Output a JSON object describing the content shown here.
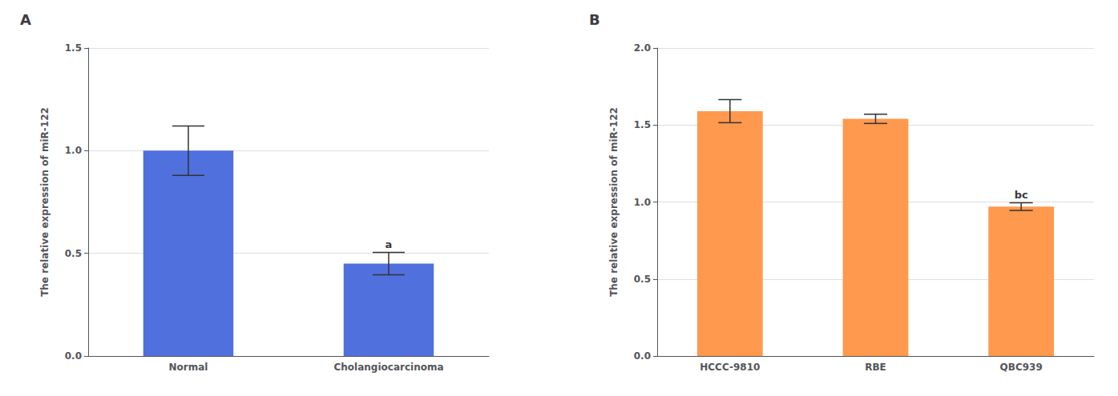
{
  "chart_data": [
    {
      "type": "bar",
      "title": "A",
      "categories": [
        "Normal",
        "Cholangiocarcinoma"
      ],
      "values": [
        1.0,
        0.45
      ],
      "errors": [
        0.12,
        0.055
      ],
      "ylabel": "The relative expression of miR-122",
      "ylim": [
        0,
        1.5
      ],
      "yticks": [
        {
          "value": 0.0,
          "label": "0.0"
        },
        0.5,
        {
          "value": 1.0,
          "label": "1.0"
        },
        1.5
      ],
      "annotations": [
        {
          "text": "a",
          "category": "Cholangiocarcinoma",
          "y": 0.505
        }
      ]
    },
    {
      "type": "bar",
      "title": "B",
      "categories": [
        "HCCC-9810",
        "RBE",
        "QBC939"
      ],
      "values": [
        1.59,
        1.54,
        0.97
      ],
      "errors": [
        0.075,
        0.03,
        0.025
      ],
      "ylabel": "The relative expression of miR-122",
      "ylim": [
        0,
        2.0
      ],
      "yticks": [
        {
          "value": 0.0,
          "label": "0.0"
        },
        0.5,
        {
          "value": 1.0,
          "label": "1.0"
        },
        1.5,
        {
          "value": 2.0,
          "label": "2.0"
        }
      ],
      "annotations": [
        {
          "text": "bc",
          "category": "QBC939",
          "y": 0.995
        }
      ]
    }
  ]
}
